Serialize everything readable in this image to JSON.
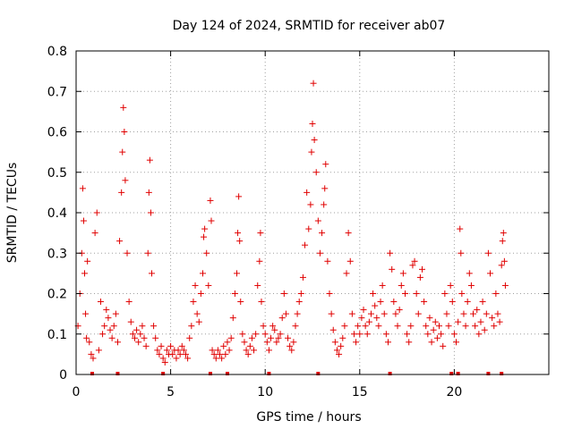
{
  "chart_data": {
    "type": "scatter",
    "title": "Day 124 of 2024, SRMTID for receiver ab07",
    "xlabel": "GPS time / hours",
    "ylabel": "SRMTID / TECUs",
    "xlim": [
      0,
      25
    ],
    "ylim": [
      0,
      0.8
    ],
    "xticks": [
      0,
      5,
      10,
      15,
      20
    ],
    "yticks": [
      0,
      0.1,
      0.2,
      0.3,
      0.4,
      0.5,
      0.6,
      0.7,
      0.8
    ],
    "xtick_labels": [
      "0",
      "5",
      "10",
      "15",
      "20"
    ],
    "ytick_labels": [
      "0",
      "0.1",
      "0.2",
      "0.3",
      "0.4",
      "0.5",
      "0.6",
      "0.7",
      "0.8"
    ],
    "grid": true,
    "marker": "+",
    "color": "#e00000",
    "series": [
      {
        "name": "ab07",
        "points": [
          [
            0.1,
            0.12
          ],
          [
            0.2,
            0.2
          ],
          [
            0.3,
            0.3
          ],
          [
            0.35,
            0.46
          ],
          [
            0.4,
            0.38
          ],
          [
            0.45,
            0.25
          ],
          [
            0.5,
            0.15
          ],
          [
            0.55,
            0.09
          ],
          [
            0.6,
            0.28
          ],
          [
            0.7,
            0.08
          ],
          [
            0.8,
            0.05
          ],
          [
            0.9,
            0.04
          ],
          [
            1.0,
            0.35
          ],
          [
            1.1,
            0.4
          ],
          [
            1.2,
            0.06
          ],
          [
            1.3,
            0.18
          ],
          [
            1.4,
            0.1
          ],
          [
            1.5,
            0.12
          ],
          [
            1.6,
            0.16
          ],
          [
            1.7,
            0.14
          ],
          [
            1.8,
            0.11
          ],
          [
            1.9,
            0.09
          ],
          [
            2.0,
            0.12
          ],
          [
            2.1,
            0.15
          ],
          [
            2.2,
            0.08
          ],
          [
            2.3,
            0.33
          ],
          [
            2.4,
            0.45
          ],
          [
            2.45,
            0.55
          ],
          [
            2.5,
            0.66
          ],
          [
            2.55,
            0.6
          ],
          [
            2.6,
            0.48
          ],
          [
            2.7,
            0.3
          ],
          [
            2.8,
            0.18
          ],
          [
            2.9,
            0.13
          ],
          [
            3.0,
            0.1
          ],
          [
            3.1,
            0.09
          ],
          [
            3.2,
            0.11
          ],
          [
            3.3,
            0.08
          ],
          [
            3.4,
            0.1
          ],
          [
            3.5,
            0.12
          ],
          [
            3.6,
            0.09
          ],
          [
            3.7,
            0.07
          ],
          [
            3.8,
            0.3
          ],
          [
            3.85,
            0.45
          ],
          [
            3.9,
            0.53
          ],
          [
            3.95,
            0.4
          ],
          [
            4.0,
            0.25
          ],
          [
            4.1,
            0.12
          ],
          [
            4.2,
            0.09
          ],
          [
            4.3,
            0.06
          ],
          [
            4.4,
            0.05
          ],
          [
            4.5,
            0.07
          ],
          [
            4.6,
            0.04
          ],
          [
            4.7,
            0.03
          ],
          [
            4.8,
            0.06
          ],
          [
            4.9,
            0.05
          ],
          [
            5.0,
            0.07
          ],
          [
            5.1,
            0.05
          ],
          [
            5.2,
            0.06
          ],
          [
            5.3,
            0.04
          ],
          [
            5.4,
            0.06
          ],
          [
            5.5,
            0.05
          ],
          [
            5.6,
            0.07
          ],
          [
            5.7,
            0.06
          ],
          [
            5.8,
            0.05
          ],
          [
            5.9,
            0.04
          ],
          [
            6.0,
            0.09
          ],
          [
            6.1,
            0.12
          ],
          [
            6.2,
            0.18
          ],
          [
            6.3,
            0.22
          ],
          [
            6.4,
            0.15
          ],
          [
            6.5,
            0.13
          ],
          [
            6.6,
            0.2
          ],
          [
            6.7,
            0.25
          ],
          [
            6.75,
            0.34
          ],
          [
            6.8,
            0.36
          ],
          [
            6.9,
            0.3
          ],
          [
            7.0,
            0.22
          ],
          [
            7.1,
            0.43
          ],
          [
            7.15,
            0.38
          ],
          [
            7.2,
            0.06
          ],
          [
            7.3,
            0.05
          ],
          [
            7.4,
            0.04
          ],
          [
            7.5,
            0.06
          ],
          [
            7.6,
            0.05
          ],
          [
            7.7,
            0.04
          ],
          [
            7.8,
            0.07
          ],
          [
            7.9,
            0.05
          ],
          [
            8.0,
            0.08
          ],
          [
            8.1,
            0.06
          ],
          [
            8.2,
            0.09
          ],
          [
            8.3,
            0.14
          ],
          [
            8.4,
            0.2
          ],
          [
            8.5,
            0.25
          ],
          [
            8.55,
            0.35
          ],
          [
            8.6,
            0.44
          ],
          [
            8.65,
            0.33
          ],
          [
            8.7,
            0.18
          ],
          [
            8.8,
            0.1
          ],
          [
            8.9,
            0.08
          ],
          [
            9.0,
            0.06
          ],
          [
            9.1,
            0.05
          ],
          [
            9.2,
            0.07
          ],
          [
            9.3,
            0.09
          ],
          [
            9.4,
            0.06
          ],
          [
            9.5,
            0.1
          ],
          [
            9.6,
            0.22
          ],
          [
            9.7,
            0.28
          ],
          [
            9.75,
            0.35
          ],
          [
            9.8,
            0.18
          ],
          [
            9.9,
            0.12
          ],
          [
            10.0,
            0.1
          ],
          [
            10.1,
            0.08
          ],
          [
            10.2,
            0.06
          ],
          [
            10.3,
            0.09
          ],
          [
            10.4,
            0.12
          ],
          [
            10.5,
            0.11
          ],
          [
            10.6,
            0.08
          ],
          [
            10.7,
            0.09
          ],
          [
            10.8,
            0.1
          ],
          [
            10.9,
            0.14
          ],
          [
            11.0,
            0.2
          ],
          [
            11.1,
            0.15
          ],
          [
            11.2,
            0.09
          ],
          [
            11.3,
            0.07
          ],
          [
            11.4,
            0.06
          ],
          [
            11.5,
            0.08
          ],
          [
            11.6,
            0.12
          ],
          [
            11.7,
            0.15
          ],
          [
            11.8,
            0.18
          ],
          [
            11.9,
            0.2
          ],
          [
            12.0,
            0.24
          ],
          [
            12.1,
            0.32
          ],
          [
            12.2,
            0.45
          ],
          [
            12.3,
            0.36
          ],
          [
            12.4,
            0.42
          ],
          [
            12.45,
            0.55
          ],
          [
            12.5,
            0.62
          ],
          [
            12.55,
            0.72
          ],
          [
            12.6,
            0.58
          ],
          [
            12.7,
            0.5
          ],
          [
            12.8,
            0.38
          ],
          [
            12.9,
            0.3
          ],
          [
            13.0,
            0.35
          ],
          [
            13.1,
            0.42
          ],
          [
            13.15,
            0.46
          ],
          [
            13.2,
            0.52
          ],
          [
            13.3,
            0.28
          ],
          [
            13.4,
            0.2
          ],
          [
            13.5,
            0.15
          ],
          [
            13.6,
            0.11
          ],
          [
            13.7,
            0.08
          ],
          [
            13.8,
            0.06
          ],
          [
            13.9,
            0.05
          ],
          [
            14.0,
            0.07
          ],
          [
            14.1,
            0.09
          ],
          [
            14.2,
            0.12
          ],
          [
            14.3,
            0.25
          ],
          [
            14.4,
            0.35
          ],
          [
            14.5,
            0.28
          ],
          [
            14.6,
            0.15
          ],
          [
            14.7,
            0.1
          ],
          [
            14.8,
            0.08
          ],
          [
            14.9,
            0.12
          ],
          [
            15.0,
            0.1
          ],
          [
            15.1,
            0.14
          ],
          [
            15.2,
            0.16
          ],
          [
            15.3,
            0.12
          ],
          [
            15.4,
            0.1
          ],
          [
            15.5,
            0.13
          ],
          [
            15.6,
            0.15
          ],
          [
            15.7,
            0.2
          ],
          [
            15.8,
            0.17
          ],
          [
            15.9,
            0.14
          ],
          [
            16.0,
            0.12
          ],
          [
            16.1,
            0.18
          ],
          [
            16.2,
            0.22
          ],
          [
            16.3,
            0.15
          ],
          [
            16.4,
            0.1
          ],
          [
            16.5,
            0.08
          ],
          [
            16.6,
            0.3
          ],
          [
            16.7,
            0.26
          ],
          [
            16.8,
            0.18
          ],
          [
            16.9,
            0.15
          ],
          [
            17.0,
            0.12
          ],
          [
            17.1,
            0.16
          ],
          [
            17.2,
            0.22
          ],
          [
            17.3,
            0.25
          ],
          [
            17.4,
            0.2
          ],
          [
            17.5,
            0.1
          ],
          [
            17.6,
            0.08
          ],
          [
            17.7,
            0.12
          ],
          [
            17.8,
            0.27
          ],
          [
            17.9,
            0.28
          ],
          [
            18.0,
            0.2
          ],
          [
            18.1,
            0.15
          ],
          [
            18.2,
            0.24
          ],
          [
            18.3,
            0.26
          ],
          [
            18.4,
            0.18
          ],
          [
            18.5,
            0.12
          ],
          [
            18.6,
            0.1
          ],
          [
            18.7,
            0.14
          ],
          [
            18.8,
            0.08
          ],
          [
            18.9,
            0.11
          ],
          [
            19.0,
            0.13
          ],
          [
            19.1,
            0.09
          ],
          [
            19.2,
            0.12
          ],
          [
            19.3,
            0.1
          ],
          [
            19.4,
            0.07
          ],
          [
            19.5,
            0.2
          ],
          [
            19.6,
            0.15
          ],
          [
            19.7,
            0.12
          ],
          [
            19.8,
            0.22
          ],
          [
            19.9,
            0.18
          ],
          [
            20.0,
            0.1
          ],
          [
            20.1,
            0.08
          ],
          [
            20.2,
            0.13
          ],
          [
            20.3,
            0.36
          ],
          [
            20.35,
            0.3
          ],
          [
            20.4,
            0.2
          ],
          [
            20.5,
            0.15
          ],
          [
            20.6,
            0.12
          ],
          [
            20.7,
            0.18
          ],
          [
            20.8,
            0.25
          ],
          [
            20.9,
            0.22
          ],
          [
            21.0,
            0.15
          ],
          [
            21.1,
            0.12
          ],
          [
            21.2,
            0.16
          ],
          [
            21.3,
            0.1
          ],
          [
            21.4,
            0.13
          ],
          [
            21.5,
            0.18
          ],
          [
            21.6,
            0.11
          ],
          [
            21.7,
            0.15
          ],
          [
            21.8,
            0.3
          ],
          [
            21.9,
            0.25
          ],
          [
            22.0,
            0.14
          ],
          [
            22.1,
            0.12
          ],
          [
            22.2,
            0.2
          ],
          [
            22.3,
            0.15
          ],
          [
            22.4,
            0.13
          ],
          [
            22.5,
            0.27
          ],
          [
            22.55,
            0.33
          ],
          [
            22.6,
            0.35
          ],
          [
            22.65,
            0.28
          ],
          [
            22.7,
            0.22
          ]
        ]
      }
    ],
    "gap_markers_x": [
      0.85,
      2.2,
      4.6,
      7.1,
      8.0,
      10.2,
      12.8,
      16.6,
      19.85,
      20.2,
      21.8,
      22.5
    ]
  }
}
